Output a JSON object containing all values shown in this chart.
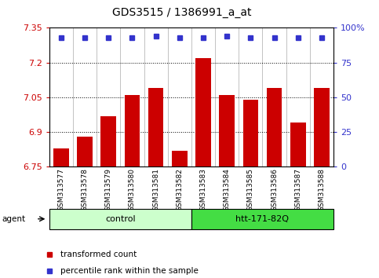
{
  "title": "GDS3515 / 1386991_a_at",
  "samples": [
    "GSM313577",
    "GSM313578",
    "GSM313579",
    "GSM313580",
    "GSM313581",
    "GSM313582",
    "GSM313583",
    "GSM313584",
    "GSM313585",
    "GSM313586",
    "GSM313587",
    "GSM313588"
  ],
  "bar_values": [
    6.83,
    6.88,
    6.97,
    7.06,
    7.09,
    6.82,
    7.22,
    7.06,
    7.04,
    7.09,
    6.94,
    7.09
  ],
  "percentile_values": [
    93,
    93,
    93,
    93,
    94,
    93,
    93,
    94,
    93,
    93,
    93,
    93
  ],
  "bar_color": "#cc0000",
  "dot_color": "#3333cc",
  "ylim_left": [
    6.75,
    7.35
  ],
  "ylim_right": [
    0,
    100
  ],
  "yticks_left": [
    6.75,
    6.9,
    7.05,
    7.2,
    7.35
  ],
  "yticks_right": [
    0,
    25,
    50,
    75,
    100
  ],
  "ytick_labels_left": [
    "6.75",
    "6.9",
    "7.05",
    "7.2",
    "7.35"
  ],
  "ytick_labels_right": [
    "0",
    "25",
    "50",
    "75",
    "100%"
  ],
  "hlines": [
    6.9,
    7.05,
    7.2
  ],
  "ctrl_color": "#ccffcc",
  "htt_color": "#44dd44",
  "agent_label": "agent",
  "legend_red_label": "transformed count",
  "legend_blue_label": "percentile rank within the sample",
  "background_color": "#ffffff",
  "title_fontsize": 10,
  "tick_fontsize": 8,
  "sample_fontsize": 6.5,
  "group_fontsize": 8,
  "legend_fontsize": 7.5
}
